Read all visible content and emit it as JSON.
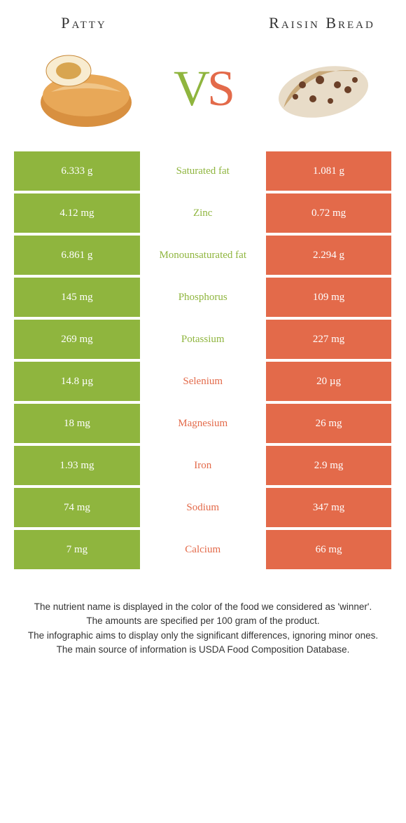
{
  "foods": {
    "left": {
      "name": "Patty",
      "color": "#8fb53e"
    },
    "right": {
      "name": "Raisin Bread",
      "color": "#e36a4a"
    }
  },
  "vs": {
    "v": "V",
    "s": "S"
  },
  "colors": {
    "green": "#8fb53e",
    "orange": "#e36a4a",
    "row_gap": "#ffffff",
    "text_light": "#ffffff"
  },
  "rows": [
    {
      "left": "6.333 g",
      "label": "Saturated fat",
      "right": "1.081 g",
      "winner": "left"
    },
    {
      "left": "4.12 mg",
      "label": "Zinc",
      "right": "0.72 mg",
      "winner": "left"
    },
    {
      "left": "6.861 g",
      "label": "Monounsaturated fat",
      "right": "2.294 g",
      "winner": "left"
    },
    {
      "left": "145 mg",
      "label": "Phosphorus",
      "right": "109 mg",
      "winner": "left"
    },
    {
      "left": "269 mg",
      "label": "Potassium",
      "right": "227 mg",
      "winner": "left"
    },
    {
      "left": "14.8 µg",
      "label": "Selenium",
      "right": "20 µg",
      "winner": "right"
    },
    {
      "left": "18 mg",
      "label": "Magnesium",
      "right": "26 mg",
      "winner": "right"
    },
    {
      "left": "1.93 mg",
      "label": "Iron",
      "right": "2.9 mg",
      "winner": "right"
    },
    {
      "left": "74 mg",
      "label": "Sodium",
      "right": "347 mg",
      "winner": "right"
    },
    {
      "left": "7 mg",
      "label": "Calcium",
      "right": "66 mg",
      "winner": "right"
    }
  ],
  "footer": [
    "The nutrient name is displayed in the color of the food we considered as 'winner'.",
    "The amounts are specified per 100 gram of the product.",
    "The infographic aims to display only the significant differences, ignoring minor ones.",
    "The main source of information is USDA Food Composition Database."
  ]
}
